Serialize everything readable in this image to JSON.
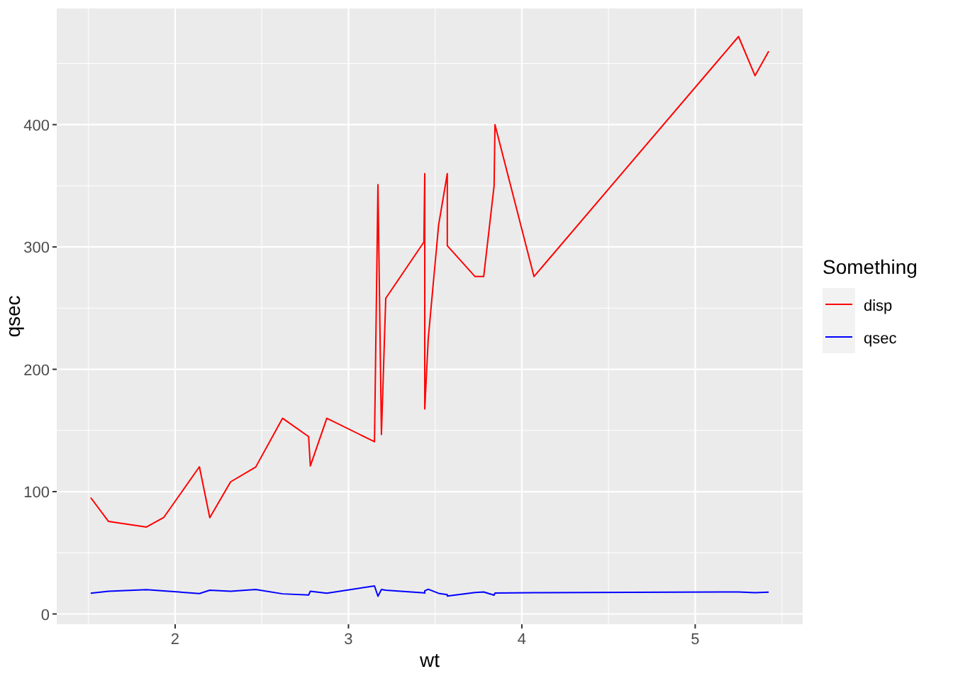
{
  "chart_data": {
    "type": "line",
    "xlabel": "wt",
    "ylabel": "qsec",
    "legend_title": "Something",
    "legend": "right",
    "grid": true,
    "x": [
      1.513,
      1.615,
      1.835,
      1.935,
      2.14,
      2.2,
      2.32,
      2.465,
      2.62,
      2.77,
      2.78,
      2.875,
      3.15,
      3.17,
      3.19,
      3.215,
      3.435,
      3.44,
      3.44,
      3.44,
      3.46,
      3.52,
      3.57,
      3.57,
      3.73,
      3.78,
      3.84,
      3.845,
      4.07,
      5.25,
      5.345,
      5.424
    ],
    "series": [
      {
        "name": "disp",
        "color": "#ff0000",
        "values": [
          95.1,
          75.7,
          71.1,
          79,
          120.3,
          78.7,
          108,
          120.1,
          160,
          145,
          121,
          160,
          140.8,
          351,
          146.7,
          258,
          304,
          360,
          167.6,
          167.6,
          225,
          318,
          360,
          301,
          275.8,
          275.8,
          350,
          400,
          275.8,
          472,
          440,
          460
        ]
      },
      {
        "name": "qsec",
        "color": "#0000ff",
        "values": [
          16.9,
          18.52,
          19.9,
          18.9,
          16.7,
          19.47,
          18.61,
          20.01,
          16.46,
          15.5,
          18.6,
          17.02,
          22.9,
          14.5,
          20,
          19.44,
          17.3,
          17.02,
          18.3,
          18.9,
          20.22,
          16.87,
          15.84,
          14.6,
          17.6,
          18,
          15.41,
          17.05,
          17.4,
          17.98,
          17.42,
          17.82
        ]
      }
    ],
    "xlim": [
      1.317,
      5.62
    ],
    "ylim": [
      -8.4,
      494.9
    ],
    "xticks": [
      2,
      3,
      4,
      5
    ],
    "yticks": [
      0,
      100,
      200,
      300,
      400
    ]
  }
}
